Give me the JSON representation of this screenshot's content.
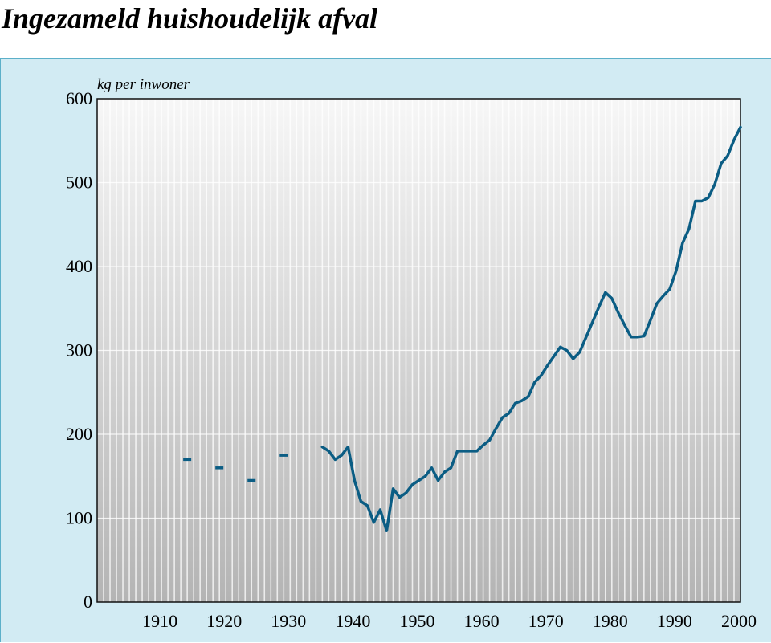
{
  "title": "Ingezameld huishoudelijk afval",
  "colors": {
    "panel_background": "#d2ebf3",
    "panel_border": "#5cb0c9",
    "plot_gradient_light": "#f7f7f7",
    "plot_gradient_dark": "#b4b4b4",
    "line": "#0b5d84"
  },
  "chart_data": {
    "type": "line",
    "title": "Ingezameld huishoudelijk afval",
    "ylabel": "kg per inwoner",
    "xlabel": "",
    "xlim": [
      1900,
      2000
    ],
    "ylim": [
      0,
      600
    ],
    "xticks": [
      "1910",
      "1920",
      "1930",
      "1940",
      "1950",
      "1960",
      "1970",
      "1980",
      "1990",
      "2000"
    ],
    "yticks": [
      "0",
      "100",
      "200",
      "300",
      "400",
      "500",
      "600"
    ],
    "grid": "vertical lines every year, horizontal lines every 100",
    "legend": "none",
    "isolated_points": [
      {
        "x": 1914,
        "y": 170
      },
      {
        "x": 1919,
        "y": 160
      },
      {
        "x": 1924,
        "y": 145
      },
      {
        "x": 1929,
        "y": 175
      }
    ],
    "series": [
      {
        "x": [
          1935,
          1936,
          1937,
          1938,
          1939,
          1940,
          1941,
          1942,
          1943,
          1944,
          1945,
          1946,
          1947,
          1948,
          1949,
          1950,
          1951,
          1952,
          1953,
          1954,
          1955,
          1956,
          1957,
          1958,
          1959,
          1960,
          1961,
          1962,
          1963,
          1964,
          1965,
          1966,
          1967,
          1968,
          1969,
          1970,
          1971,
          1972,
          1973,
          1974,
          1975,
          1976,
          1977,
          1978,
          1979,
          1980,
          1981,
          1982,
          1983,
          1984,
          1985,
          1986,
          1987,
          1988,
          1989,
          1990,
          1991,
          1992,
          1993,
          1994,
          1995,
          1996,
          1997,
          1998,
          1999,
          2000
        ],
        "y": [
          185,
          180,
          170,
          175,
          185,
          145,
          120,
          115,
          95,
          110,
          85,
          135,
          125,
          130,
          140,
          145,
          150,
          160,
          145,
          155,
          160,
          180,
          180,
          180,
          180,
          187,
          193,
          207,
          220,
          225,
          237,
          240,
          245,
          262,
          270,
          282,
          293,
          304,
          300,
          290,
          298,
          316,
          334,
          352,
          369,
          362,
          345,
          330,
          316,
          316,
          317,
          336,
          356,
          365,
          373,
          395,
          428,
          445,
          478,
          478,
          482,
          498,
          523,
          532,
          551,
          566
        ]
      }
    ]
  }
}
